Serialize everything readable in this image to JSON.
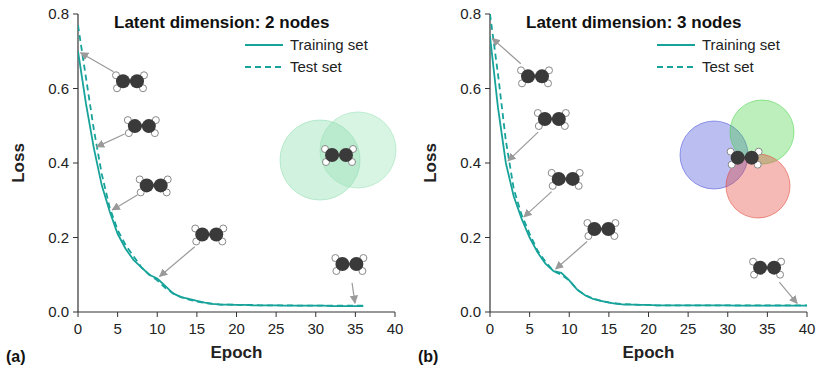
{
  "chart_data": [
    {
      "type": "line",
      "panel_label": "(a)",
      "title": "Latent dimension: 2 nodes",
      "x_label": "Epoch",
      "y_label": "Loss",
      "x": [
        0,
        1,
        2,
        3,
        4,
        5,
        6,
        7,
        8,
        9,
        10,
        11,
        12,
        13,
        14,
        15,
        16,
        17,
        18,
        19,
        20,
        21,
        22,
        23,
        24,
        25,
        26,
        27,
        28,
        29,
        30,
        31,
        32,
        33,
        34,
        35,
        36
      ],
      "series": [
        {
          "name": "Training set",
          "color": "#17a39a",
          "line_style": "solid",
          "values": [
            0.7,
            0.56,
            0.44,
            0.34,
            0.27,
            0.21,
            0.17,
            0.14,
            0.12,
            0.1,
            0.09,
            0.07,
            0.05,
            0.04,
            0.035,
            0.03,
            0.025,
            0.022,
            0.02,
            0.02,
            0.019,
            0.019,
            0.018,
            0.018,
            0.018,
            0.018,
            0.017,
            0.017,
            0.017,
            0.017,
            0.017,
            0.017,
            0.016,
            0.016,
            0.016,
            0.016,
            0.016
          ]
        },
        {
          "name": "Test set",
          "color": "#17a39a",
          "line_style": "dashed",
          "values": [
            0.77,
            0.63,
            0.49,
            0.37,
            0.28,
            0.22,
            0.18,
            0.15,
            0.12,
            0.1,
            0.085,
            0.065,
            0.05,
            0.04,
            0.033,
            0.028,
            0.024,
            0.022,
            0.02,
            0.02,
            0.019,
            0.019,
            0.019,
            0.018,
            0.018,
            0.018,
            0.018,
            0.018,
            0.017,
            0.017,
            0.017,
            0.017,
            0.017,
            0.017,
            0.017,
            0.017,
            0.017
          ]
        }
      ],
      "xlim": [
        0,
        40
      ],
      "xticks": [
        0,
        5,
        10,
        15,
        20,
        25,
        30,
        35,
        40
      ],
      "ylim": [
        0,
        0.8
      ],
      "yticks": [
        {
          "value": 0,
          "label": "0.0"
        },
        0.2,
        0.4,
        0.6,
        0.8
      ],
      "legend": "top-right",
      "grid": false
    },
    {
      "type": "line",
      "panel_label": "(b)",
      "title": "Latent dimension: 3 nodes",
      "x_label": "Epoch",
      "y_label": "Loss",
      "x": [
        0,
        1,
        2,
        3,
        4,
        5,
        6,
        7,
        8,
        9,
        10,
        11,
        12,
        13,
        14,
        15,
        16,
        17,
        18,
        19,
        20,
        21,
        22,
        23,
        24,
        25,
        26,
        27,
        28,
        29,
        30,
        31,
        32,
        33,
        34,
        35,
        36,
        37,
        38,
        39,
        40
      ],
      "series": [
        {
          "name": "Training set",
          "color": "#17a39a",
          "line_style": "solid",
          "values": [
            0.74,
            0.55,
            0.4,
            0.31,
            0.25,
            0.2,
            0.16,
            0.13,
            0.11,
            0.105,
            0.085,
            0.06,
            0.045,
            0.035,
            0.03,
            0.025,
            0.022,
            0.02,
            0.02,
            0.019,
            0.019,
            0.018,
            0.018,
            0.018,
            0.018,
            0.018,
            0.018,
            0.018,
            0.018,
            0.018,
            0.018,
            0.017,
            0.017,
            0.017,
            0.017,
            0.017,
            0.017,
            0.017,
            0.017,
            0.017,
            0.017
          ]
        },
        {
          "name": "Test set",
          "color": "#17a39a",
          "line_style": "dashed",
          "values": [
            0.8,
            0.64,
            0.46,
            0.33,
            0.26,
            0.21,
            0.165,
            0.135,
            0.11,
            0.1,
            0.085,
            0.06,
            0.045,
            0.036,
            0.03,
            0.026,
            0.023,
            0.021,
            0.02,
            0.019,
            0.019,
            0.018,
            0.018,
            0.018,
            0.018,
            0.018,
            0.018,
            0.018,
            0.018,
            0.018,
            0.018,
            0.018,
            0.018,
            0.018,
            0.018,
            0.018,
            0.018,
            0.018,
            0.018,
            0.018,
            0.018
          ]
        }
      ],
      "xlim": [
        0,
        40
      ],
      "xticks": [
        0,
        5,
        10,
        15,
        20,
        25,
        30,
        35,
        40
      ],
      "ylim": [
        0,
        0.8
      ],
      "yticks": [
        {
          "value": 0,
          "label": "0.0"
        },
        0.2,
        0.4,
        0.6,
        0.8
      ],
      "legend": "top-right",
      "grid": false
    }
  ]
}
